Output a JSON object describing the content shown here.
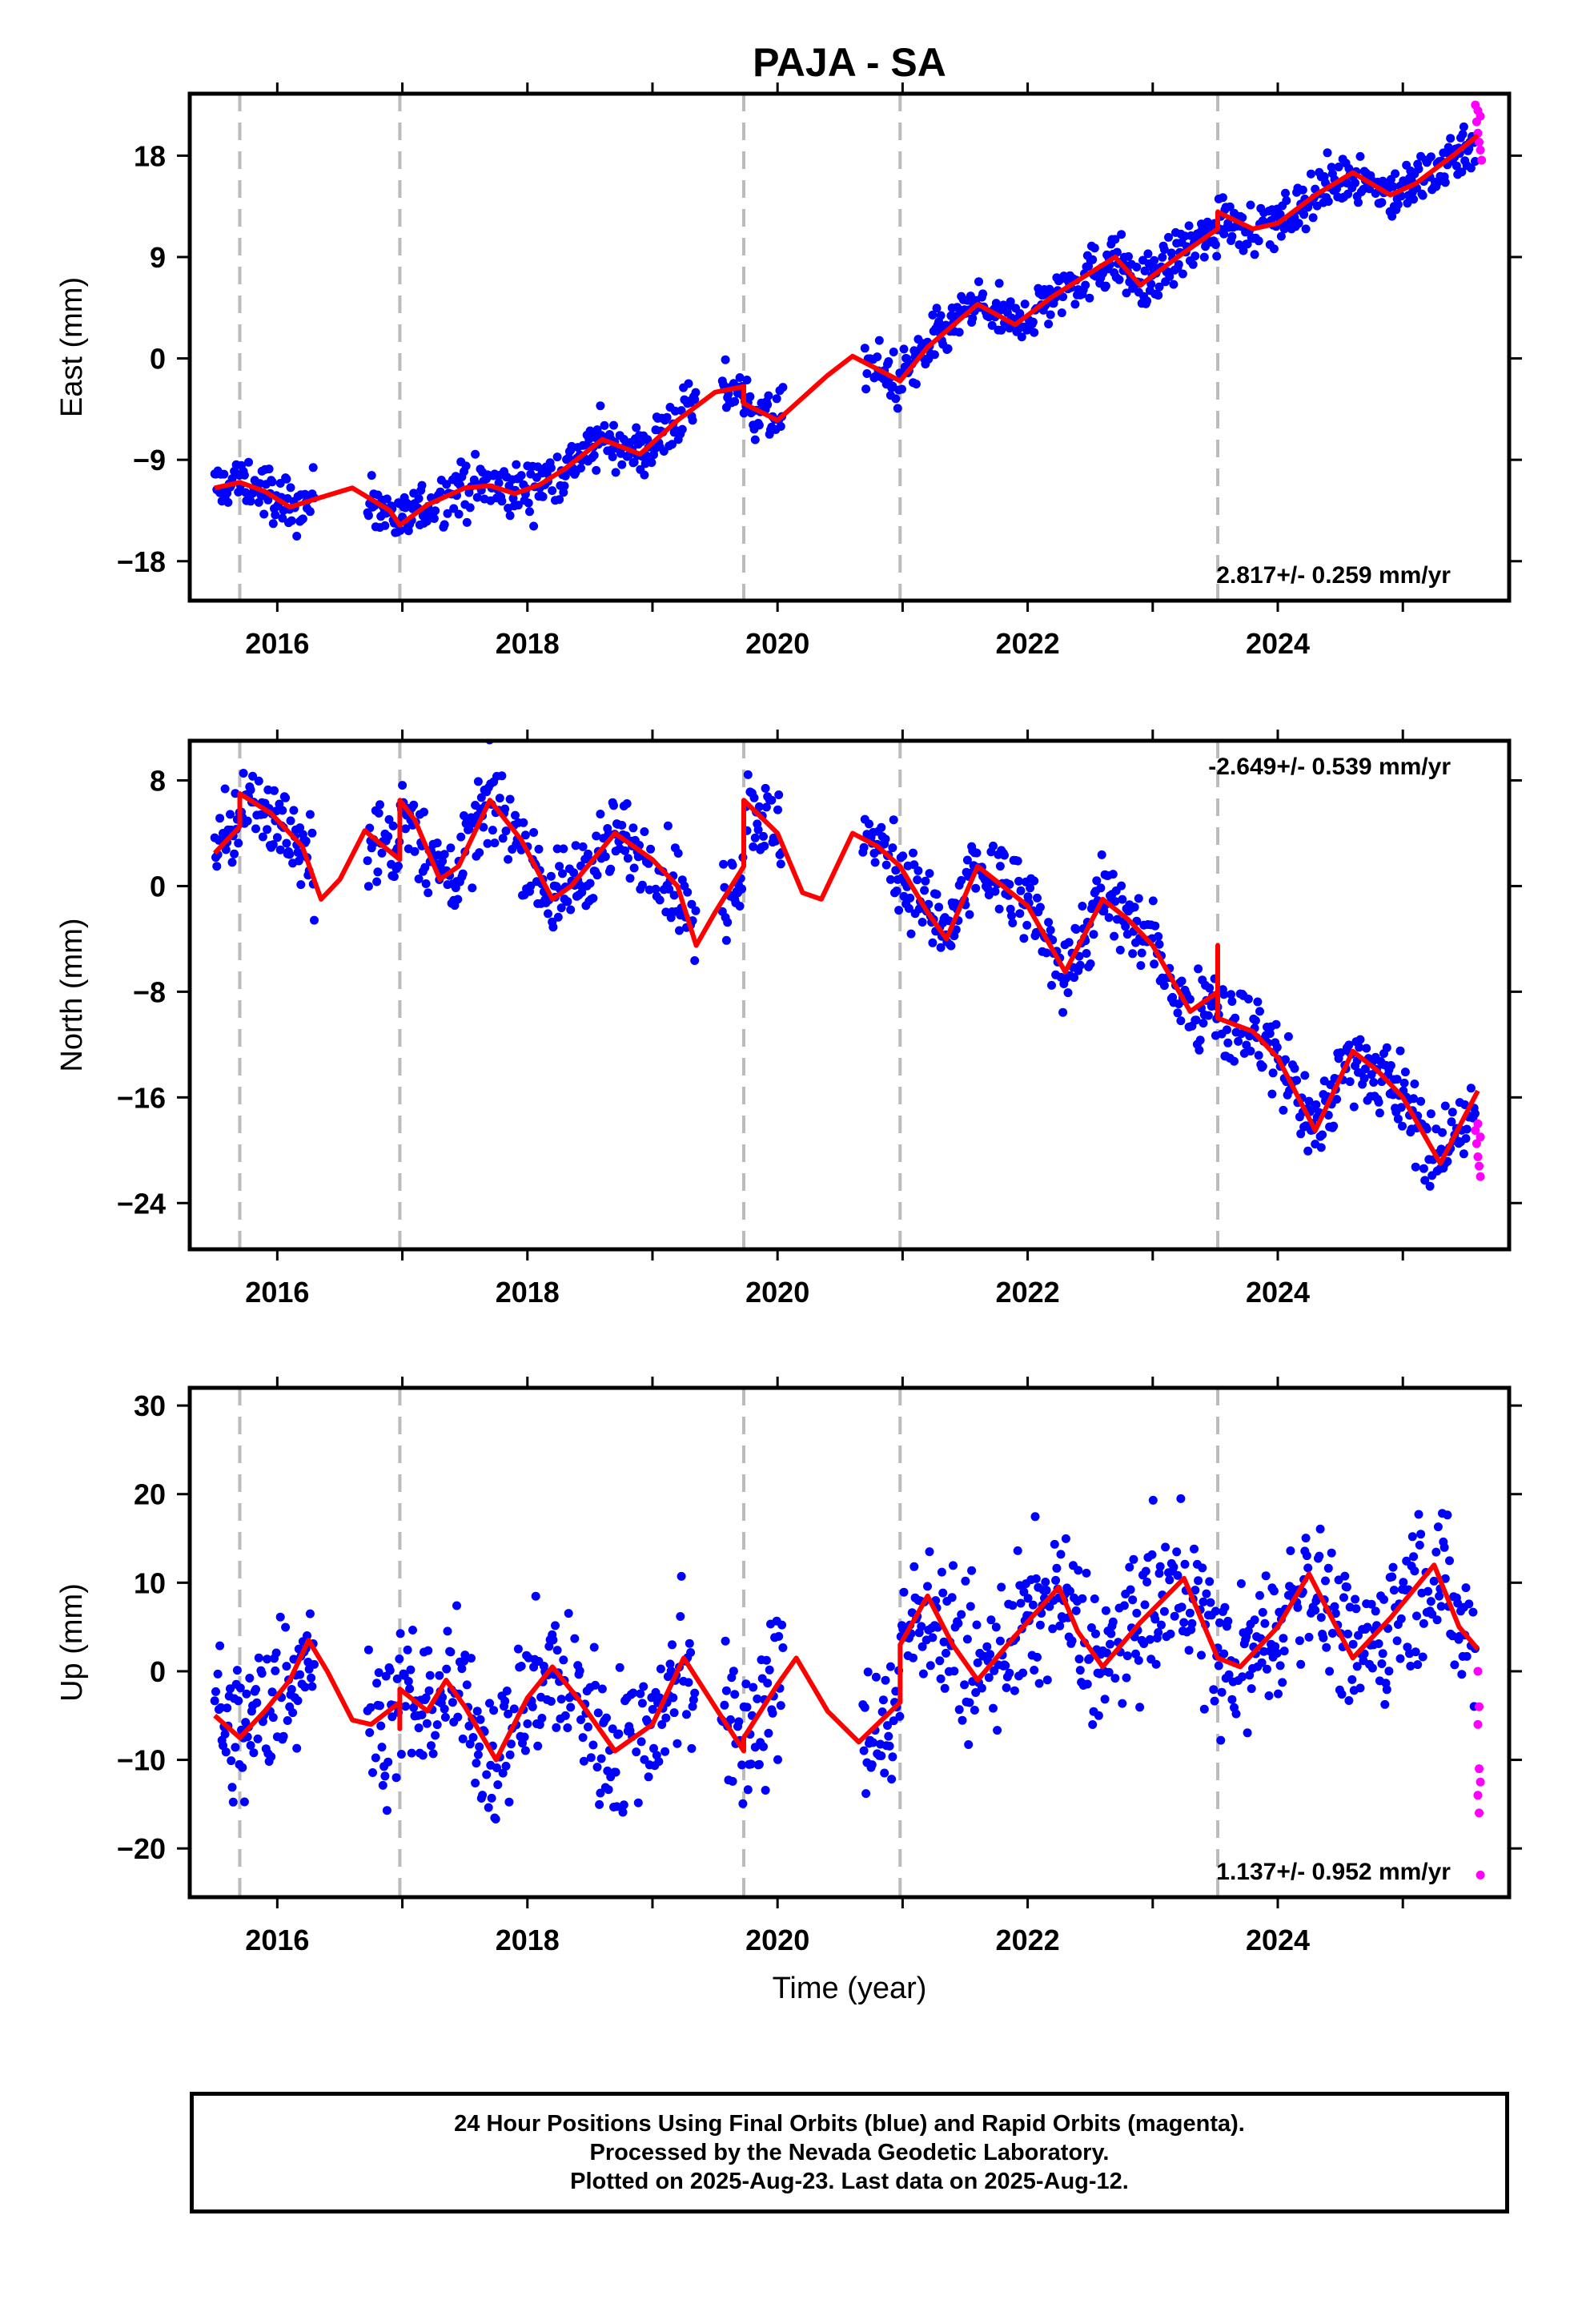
{
  "chart_data": {
    "type": "scatter",
    "title": "PAJA - SA",
    "xlabel": "Time (year)",
    "x_tick_labels": [
      "2016",
      "2018",
      "2020",
      "2022",
      "2024"
    ],
    "xlim": [
      2015.3,
      2025.85
    ],
    "offset_epochs": [
      2015.7,
      2016.98,
      2019.73,
      2020.98,
      2023.52
    ],
    "colors": {
      "final": "#0000ff",
      "rapid": "#ff00ff",
      "model": "#ff0000",
      "offset_line": "#bbbbbb"
    },
    "panels": [
      {
        "ylabel": "East (mm)",
        "ylim": [
          -21.5,
          23.5
        ],
        "y_ticks": [
          18,
          9,
          0,
          -9,
          -18
        ],
        "y_tick_labels": [
          "18",
          "9",
          "0",
          "−9",
          "−18"
        ],
        "rate_text": "2.817+/- 0.259 mm/yr",
        "rate_position": "bottom-right",
        "model_curve": [
          [
            2015.5,
            -11.5
          ],
          [
            2015.7,
            -11.0
          ],
          [
            2015.9,
            -11.8
          ],
          [
            2016.1,
            -13.2
          ],
          [
            2016.3,
            -12.5
          ],
          [
            2016.6,
            -11.5
          ],
          [
            2016.9,
            -13.5
          ],
          [
            2016.98,
            -14.8
          ],
          [
            2017.2,
            -13.0
          ],
          [
            2017.5,
            -11.5
          ],
          [
            2017.7,
            -11.3
          ],
          [
            2017.9,
            -12.0
          ],
          [
            2018.1,
            -11.2
          ],
          [
            2018.3,
            -9.8
          ],
          [
            2018.6,
            -7.2
          ],
          [
            2018.9,
            -8.5
          ],
          [
            2019.2,
            -5.5
          ],
          [
            2019.5,
            -3.0
          ],
          [
            2019.73,
            -2.5
          ],
          [
            2019.73,
            -4.0
          ],
          [
            2020.0,
            -5.5
          ],
          [
            2020.2,
            -3.5
          ],
          [
            2020.4,
            -1.5
          ],
          [
            2020.6,
            0.2
          ],
          [
            2020.98,
            -2.0
          ],
          [
            2021.2,
            1.0
          ],
          [
            2021.6,
            4.8
          ],
          [
            2021.9,
            3.0
          ],
          [
            2022.2,
            5.5
          ],
          [
            2022.7,
            9.0
          ],
          [
            2022.9,
            6.5
          ],
          [
            2023.2,
            9.0
          ],
          [
            2023.52,
            11.5
          ],
          [
            2023.52,
            13.0
          ],
          [
            2023.8,
            11.5
          ],
          [
            2024.0,
            12.0
          ],
          [
            2024.3,
            14.5
          ],
          [
            2024.6,
            16.5
          ],
          [
            2024.9,
            14.5
          ],
          [
            2025.1,
            15.5
          ],
          [
            2025.4,
            18.0
          ],
          [
            2025.6,
            19.8
          ]
        ],
        "rapid_points": [
          [
            2025.58,
            22.5
          ],
          [
            2025.59,
            21.0
          ],
          [
            2025.6,
            20.0
          ],
          [
            2025.61,
            19.2
          ],
          [
            2025.62,
            18.5
          ],
          [
            2025.63,
            17.6
          ],
          [
            2025.6,
            22.0
          ],
          [
            2025.62,
            21.5
          ]
        ]
      },
      {
        "ylabel": "North (mm)",
        "ylim": [
          -27.5,
          11.0
        ],
        "y_ticks": [
          8,
          0,
          -8,
          -16,
          -24
        ],
        "y_tick_labels": [
          "8",
          "0",
          "−8",
          "−16",
          "−24"
        ],
        "rate_text": "-2.649+/- 0.539 mm/yr",
        "rate_position": "top-right",
        "model_curve": [
          [
            2015.5,
            2.5
          ],
          [
            2015.7,
            4.5
          ],
          [
            2015.7,
            7.0
          ],
          [
            2015.95,
            5.5
          ],
          [
            2016.2,
            3.0
          ],
          [
            2016.35,
            -1.0
          ],
          [
            2016.5,
            0.5
          ],
          [
            2016.7,
            4.2
          ],
          [
            2016.85,
            3.0
          ],
          [
            2016.98,
            2.0
          ],
          [
            2016.98,
            6.5
          ],
          [
            2017.1,
            5.0
          ],
          [
            2017.3,
            0.5
          ],
          [
            2017.45,
            1.5
          ],
          [
            2017.7,
            6.5
          ],
          [
            2017.95,
            3.5
          ],
          [
            2018.2,
            -1.0
          ],
          [
            2018.35,
            0.0
          ],
          [
            2018.7,
            4.0
          ],
          [
            2019.0,
            2.0
          ],
          [
            2019.2,
            0.0
          ],
          [
            2019.35,
            -4.5
          ],
          [
            2019.5,
            -2.0
          ],
          [
            2019.73,
            1.5
          ],
          [
            2019.73,
            6.5
          ],
          [
            2020.0,
            4.0
          ],
          [
            2020.2,
            -0.5
          ],
          [
            2020.35,
            -1.0
          ],
          [
            2020.6,
            4.0
          ],
          [
            2020.8,
            3.0
          ],
          [
            2020.98,
            1.5
          ],
          [
            2021.2,
            -2.0
          ],
          [
            2021.35,
            -4.0
          ],
          [
            2021.6,
            1.5
          ],
          [
            2021.8,
            0.0
          ],
          [
            2022.0,
            -1.5
          ],
          [
            2022.3,
            -6.5
          ],
          [
            2022.6,
            -1.0
          ],
          [
            2022.8,
            -2.5
          ],
          [
            2023.0,
            -4.5
          ],
          [
            2023.3,
            -9.5
          ],
          [
            2023.52,
            -8.0
          ],
          [
            2023.52,
            -4.5
          ],
          [
            2023.52,
            -10.0
          ],
          [
            2023.8,
            -11.0
          ],
          [
            2024.0,
            -13.0
          ],
          [
            2024.3,
            -18.5
          ],
          [
            2024.6,
            -12.5
          ],
          [
            2024.8,
            -14.0
          ],
          [
            2025.0,
            -16.0
          ],
          [
            2025.3,
            -21.0
          ],
          [
            2025.6,
            -15.5
          ]
        ],
        "rapid_points": [
          [
            2025.58,
            -18.5
          ],
          [
            2025.59,
            -19.5
          ],
          [
            2025.6,
            -20.5
          ],
          [
            2025.61,
            -21.2
          ],
          [
            2025.62,
            -22.0
          ],
          [
            2025.6,
            -18.0
          ],
          [
            2025.62,
            -19.0
          ]
        ]
      },
      {
        "ylabel": "Up (mm)",
        "ylim": [
          -25.5,
          32.0
        ],
        "y_ticks": [
          30,
          20,
          10,
          0,
          -10,
          -20
        ],
        "y_tick_labels": [
          "30",
          "20",
          "10",
          "0",
          "−10",
          "−20"
        ],
        "rate_text": "1.137+/- 0.952 mm/yr",
        "rate_position": "bottom-right",
        "model_curve": [
          [
            2015.5,
            -5.0
          ],
          [
            2015.7,
            -7.5
          ],
          [
            2015.9,
            -4.5
          ],
          [
            2016.1,
            -1.0
          ],
          [
            2016.25,
            3.5
          ],
          [
            2016.4,
            0.0
          ],
          [
            2016.6,
            -5.5
          ],
          [
            2016.75,
            -6.0
          ],
          [
            2016.98,
            -3.5
          ],
          [
            2016.98,
            -6.5
          ],
          [
            2016.98,
            -2.0
          ],
          [
            2017.2,
            -4.5
          ],
          [
            2017.35,
            -1.0
          ],
          [
            2017.5,
            -4.0
          ],
          [
            2017.75,
            -10.0
          ],
          [
            2018.0,
            -3.0
          ],
          [
            2018.2,
            0.5
          ],
          [
            2018.4,
            -3.0
          ],
          [
            2018.7,
            -9.0
          ],
          [
            2019.0,
            -6.0
          ],
          [
            2019.25,
            1.5
          ],
          [
            2019.5,
            -4.0
          ],
          [
            2019.73,
            -9.0
          ],
          [
            2019.73,
            -7.5
          ],
          [
            2020.0,
            -1.5
          ],
          [
            2020.15,
            1.5
          ],
          [
            2020.4,
            -4.5
          ],
          [
            2020.65,
            -8.0
          ],
          [
            2020.98,
            -3.5
          ],
          [
            2020.98,
            3.0
          ],
          [
            2021.2,
            8.5
          ],
          [
            2021.4,
            3.0
          ],
          [
            2021.6,
            -1.0
          ],
          [
            2021.9,
            4.0
          ],
          [
            2022.25,
            9.5
          ],
          [
            2022.4,
            4.5
          ],
          [
            2022.6,
            0.5
          ],
          [
            2022.9,
            5.5
          ],
          [
            2023.25,
            10.5
          ],
          [
            2023.4,
            5.5
          ],
          [
            2023.52,
            1.5
          ],
          [
            2023.7,
            0.5
          ],
          [
            2024.0,
            5.0
          ],
          [
            2024.25,
            11.0
          ],
          [
            2024.45,
            5.5
          ],
          [
            2024.6,
            1.5
          ],
          [
            2024.9,
            6.0
          ],
          [
            2025.25,
            12.0
          ],
          [
            2025.45,
            5.0
          ],
          [
            2025.6,
            2.5
          ]
        ],
        "rapid_points": [
          [
            2025.6,
            0.0
          ],
          [
            2025.61,
            -4.0
          ],
          [
            2025.6,
            -6.0
          ],
          [
            2025.61,
            -11.0
          ],
          [
            2025.62,
            -12.5
          ],
          [
            2025.6,
            -14.0
          ],
          [
            2025.61,
            -16.0
          ],
          [
            2025.62,
            -23.0
          ]
        ]
      }
    ]
  },
  "footer": {
    "line1": "24 Hour Positions Using Final Orbits (blue) and Rapid Orbits (magenta).",
    "line2": "Processed by the Nevada Geodetic Laboratory.",
    "line3": "Plotted on 2025-Aug-23. Last data on 2025-Aug-12."
  }
}
